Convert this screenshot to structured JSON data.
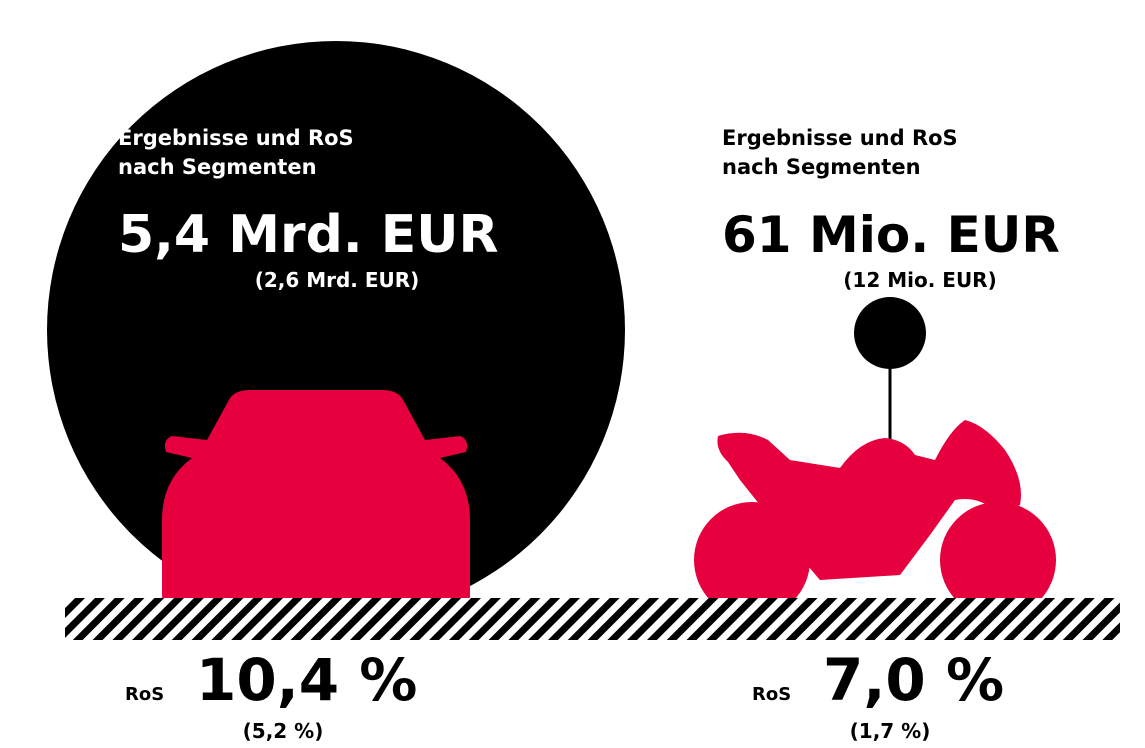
{
  "segments": [
    {
      "heading": [
        "Ergebnisse und RoS",
        "nach Segmenten"
      ],
      "result": "5,4 Mrd. EUR",
      "result_prev": "(2,6 Mrd. EUR)",
      "ros_label": "RoS",
      "ros": "10,4 %",
      "ros_prev": "(5,2 %)"
    },
    {
      "heading": [
        "Ergebnisse und RoS",
        "nach Segmenten"
      ],
      "result": "61 Mio. EUR",
      "result_prev": "(12 Mio. EUR)",
      "ros_label": "RoS",
      "ros": "7,0 %",
      "ros_prev": "(1,7 %)"
    }
  ]
}
